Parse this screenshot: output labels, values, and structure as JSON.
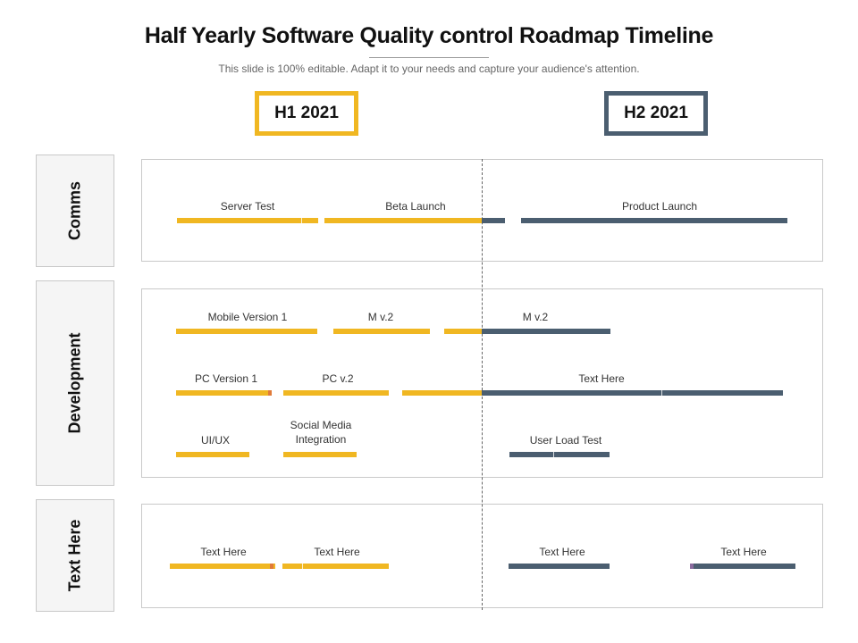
{
  "header": {
    "title": "Half Yearly Software Quality control Roadmap Timeline",
    "subtitle": "This slide is 100% editable. Adapt it to your needs and capture your audience's attention."
  },
  "periods": [
    {
      "label": "H1 2021",
      "color": "#f0b722"
    },
    {
      "label": "H2 2021",
      "color": "#4b5e70"
    }
  ],
  "lanes": [
    {
      "label": "Comms"
    },
    {
      "label": "Development"
    },
    {
      "label": "Text Here"
    }
  ],
  "tasks": {
    "server_test": "Server Test",
    "beta_launch": "Beta Launch",
    "product_launch": "Product Launch",
    "mobile_version_1": "Mobile Version 1",
    "m_v2_a": "M v.2",
    "m_v2_b": "M v.2",
    "pc_version_1": "PC Version 1",
    "pc_v2": "PC v.2",
    "dev_text_here": "Text Here",
    "ui_ux": "UI/UX",
    "social_media_line1": "Social Media",
    "social_media_line2": "Integration",
    "user_load_test": "User Load Test",
    "t3_text_1": "Text Here",
    "t3_text_2": "Text Here",
    "t3_text_3": "Text Here",
    "t3_text_4": "Text Here"
  },
  "colors": {
    "h1_bar": "#f0b722",
    "h2_bar": "#4b5e70",
    "marker_orange": "#e07b39",
    "marker_purple": "#8a6b9e"
  }
}
